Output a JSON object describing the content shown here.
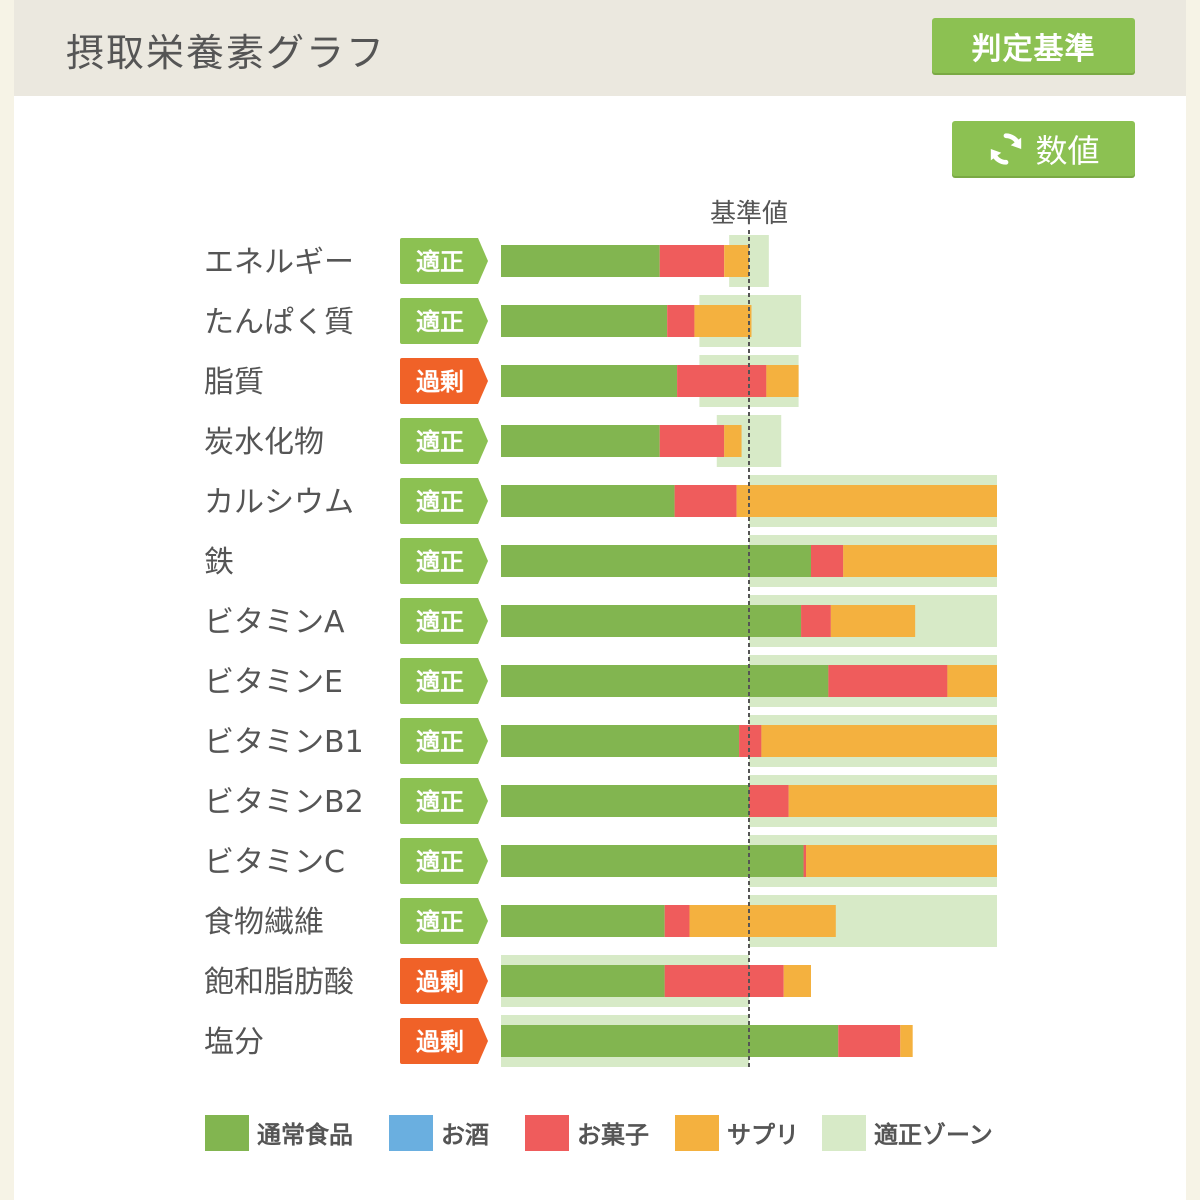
{
  "header": {
    "title": "摂取栄養素グラフ",
    "criteria_button": "判定基準"
  },
  "toggle_button": {
    "label": "数値",
    "icon": "refresh-icon"
  },
  "colors": {
    "normal_food": "#82b550",
    "alcohol": "#6aafe0",
    "snack": "#ef5c5c",
    "supplement": "#f4b13f",
    "adequate_zone": "#d7eac7",
    "badge_ok": "#8cc152",
    "badge_excess": "#f06228"
  },
  "chart_data": {
    "type": "bar",
    "orientation": "horizontal",
    "stacked": true,
    "reference_label": "基準値",
    "reference_value": 100,
    "xlim": [
      0,
      200
    ],
    "categories": [
      "エネルギー",
      "たんぱく質",
      "脂質",
      "炭水化物",
      "カルシウム",
      "鉄",
      "ビタミンA",
      "ビタミンE",
      "ビタミンB1",
      "ビタミンB2",
      "ビタミンC",
      "食物繊維",
      "飽和脂肪酸",
      "塩分"
    ],
    "status": [
      "適正",
      "適正",
      "過剰",
      "適正",
      "適正",
      "適正",
      "適正",
      "適正",
      "適正",
      "適正",
      "適正",
      "適正",
      "過剰",
      "過剰"
    ],
    "status_kind": [
      "ok",
      "ok",
      "excess",
      "ok",
      "ok",
      "ok",
      "ok",
      "ok",
      "ok",
      "ok",
      "ok",
      "ok",
      "excess",
      "excess"
    ],
    "series": [
      {
        "name": "通常食品",
        "color_key": "normal_food",
        "values": [
          64,
          67,
          71,
          64,
          70,
          125,
          121,
          132,
          96,
          100,
          122,
          66,
          66,
          136
        ]
      },
      {
        "name": "お酒",
        "color_key": "alcohol",
        "values": [
          0,
          0,
          0,
          0,
          0,
          0,
          0,
          0,
          0,
          0,
          0,
          0,
          0,
          0
        ]
      },
      {
        "name": "お菓子",
        "color_key": "snack",
        "values": [
          26,
          11,
          36,
          26,
          25,
          13,
          12,
          48,
          9,
          16,
          1,
          10,
          48,
          25
        ]
      },
      {
        "name": "サプリ",
        "color_key": "supplement",
        "values": [
          10,
          23,
          13,
          7,
          105,
          62,
          34,
          20,
          95,
          84,
          77,
          59,
          11,
          5
        ]
      }
    ],
    "adequate_zone": [
      [
        92,
        108
      ],
      [
        80,
        121
      ],
      [
        80,
        120
      ],
      [
        87,
        113
      ],
      [
        100,
        200
      ],
      [
        100,
        200
      ],
      [
        100,
        200
      ],
      [
        100,
        200
      ],
      [
        100,
        200
      ],
      [
        100,
        200
      ],
      [
        100,
        200
      ],
      [
        100,
        200
      ],
      [
        0,
        100
      ],
      [
        0,
        100
      ]
    ],
    "legend": [
      {
        "label": "通常食品",
        "color_key": "normal_food"
      },
      {
        "label": "お酒",
        "color_key": "alcohol"
      },
      {
        "label": "お菓子",
        "color_key": "snack"
      },
      {
        "label": "サプリ",
        "color_key": "supplement"
      },
      {
        "label": "適正ゾーン",
        "color_key": "adequate_zone"
      }
    ]
  }
}
